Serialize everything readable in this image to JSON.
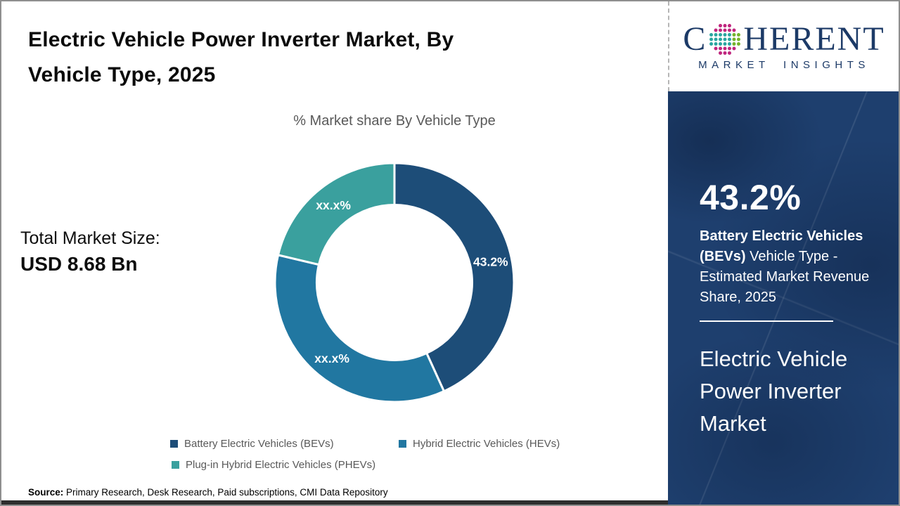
{
  "header": {
    "title_line1": "Electric Vehicle Power Inverter Market, By",
    "title_line2": "Vehicle Type, 2025"
  },
  "logo": {
    "name_prefix": "C",
    "name_suffix": "HERENT",
    "tagline": "MARKET INSIGHTS",
    "text_color": "#1c3a67",
    "globe_colors": {
      "teal": "#2aa6a0",
      "green": "#75b42c",
      "magenta": "#c0267e"
    }
  },
  "chart_data": {
    "type": "pie",
    "donut": true,
    "title": "% Market share By Vehicle Type",
    "categories": [
      "Battery Electric Vehicles (BEVs)",
      "Hybrid Electric Vehicles (HEVs)",
      "Plug-in Hybrid Electric Vehicles (PHEVs)"
    ],
    "values": [
      43.2,
      35.5,
      21.3
    ],
    "labels": [
      "43.2%",
      "xx.x%",
      "xx.x%"
    ],
    "colors": [
      "#1d4d78",
      "#2177a1",
      "#3aa09e"
    ],
    "start_angle_deg": 0,
    "inner_radius_ratio": 0.65,
    "legend_position": "bottom",
    "label_color": "#ffffff"
  },
  "stats": {
    "total_label": "Total Market Size:",
    "total_value": "USD 8.68 Bn"
  },
  "source": {
    "prefix": "Source:",
    "text": " Primary Research, Desk Research, Paid subscriptions, CMI Data Repository"
  },
  "sidebar": {
    "panel_color": "#1e3f6e",
    "stat_value": "43.2%",
    "stat_bold": "Battery Electric Vehicles (BEVs)",
    "stat_rest": " Vehicle Type - Estimated Market Revenue Share, 2025",
    "market_name": "Electric Vehicle Power Inverter Market"
  }
}
